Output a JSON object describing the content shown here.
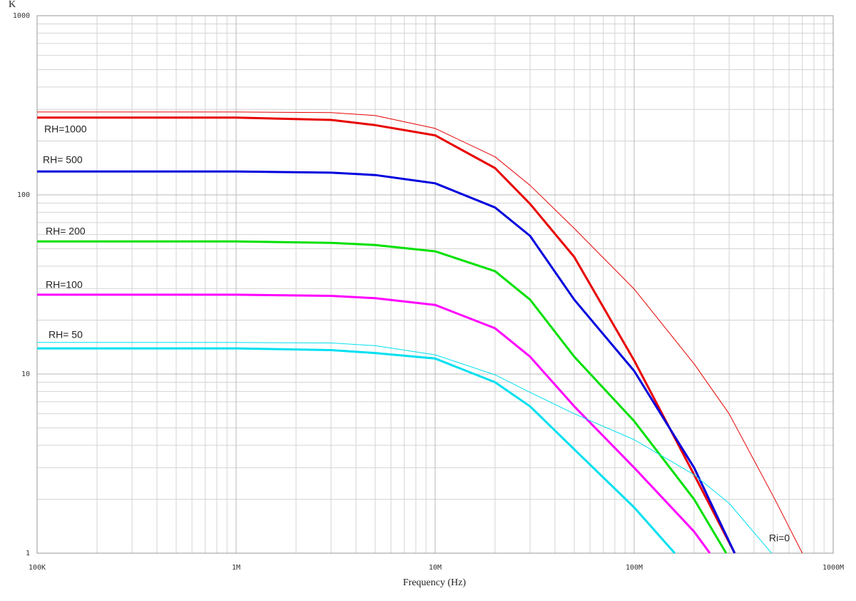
{
  "chart_data": {
    "type": "line",
    "y_label": "K",
    "x_label": "Frequency (Hz)",
    "log_x": true,
    "log_y": true,
    "grid": true,
    "xlim": [
      100000,
      1000000000
    ],
    "ylim": [
      1,
      1000
    ],
    "xticks": [
      {
        "value": 100000,
        "label": "100K"
      },
      {
        "value": 1000000,
        "label": "1M"
      },
      {
        "value": 10000000,
        "label": "10M"
      },
      {
        "value": 100000000,
        "label": "100M"
      },
      {
        "value": 1000000000,
        "label": "1000M"
      }
    ],
    "yticks": [
      1,
      10,
      100,
      1000
    ],
    "series": [
      {
        "name": "RH=1000",
        "color": "#e80000",
        "width": 3,
        "x": [
          100000,
          1000000,
          3000000,
          5000000,
          10000000,
          20000000,
          30000000,
          50000000,
          100000000,
          200000000,
          300000000,
          320000000
        ],
        "values": [
          270,
          270,
          262,
          245,
          215,
          141,
          89,
          45,
          11.9,
          2.74,
          1.15,
          1
        ]
      },
      {
        "name": "RH= 500",
        "color": "#0000dd",
        "width": 3,
        "x": [
          100000,
          1000000,
          3000000,
          5000000,
          10000000,
          20000000,
          30000000,
          50000000,
          100000000,
          200000000,
          320000000
        ],
        "values": [
          135,
          135,
          133,
          129,
          116,
          85,
          59,
          26,
          10.4,
          3.0,
          1
        ]
      },
      {
        "name": "RH= 200",
        "color": "#00e000",
        "width": 3,
        "x": [
          100000,
          1000000,
          3000000,
          5000000,
          10000000,
          20000000,
          30000000,
          50000000,
          100000000,
          200000000,
          290000000
        ],
        "values": [
          55,
          55,
          54,
          52.5,
          48.4,
          37.5,
          26,
          12.5,
          5.46,
          2.0,
          1
        ]
      },
      {
        "name": "RH=100",
        "color": "#ff00ff",
        "width": 3,
        "x": [
          100000,
          1000000,
          3000000,
          5000000,
          10000000,
          20000000,
          30000000,
          50000000,
          100000000,
          200000000,
          240000000
        ],
        "values": [
          27.7,
          27.7,
          27.3,
          26.5,
          24.3,
          18,
          12.5,
          6.6,
          3.0,
          1.32,
          1
        ]
      },
      {
        "name": "RH= 50",
        "color": "#00e0f0",
        "width": 3,
        "x": [
          100000,
          1000000,
          3000000,
          5000000,
          10000000,
          20000000,
          30000000,
          50000000,
          100000000,
          160000000
        ],
        "values": [
          13.9,
          13.9,
          13.6,
          13.1,
          12.2,
          9.0,
          6.6,
          3.8,
          1.8,
          1
        ]
      },
      {
        "name": "Ri=0",
        "color": "#e80000",
        "width": 1,
        "x": [
          100000,
          1000000,
          3000000,
          5000000,
          10000000,
          20000000,
          30000000,
          50000000,
          100000000,
          200000000,
          300000000,
          500000000,
          700000000
        ],
        "values": [
          290,
          290,
          288,
          277,
          235,
          163,
          113,
          65,
          29.8,
          11.4,
          6.0,
          2.08,
          1
        ]
      },
      {
        "color": "#00e0f0",
        "width": 1,
        "x": [
          100000,
          1000000,
          3000000,
          5000000,
          10000000,
          20000000,
          30000000,
          50000000,
          100000000,
          200000000,
          300000000,
          490000000
        ],
        "values": [
          15,
          15,
          14.9,
          14.4,
          12.8,
          9.9,
          7.9,
          6.0,
          4.3,
          2.74,
          1.9,
          1
        ]
      }
    ]
  }
}
